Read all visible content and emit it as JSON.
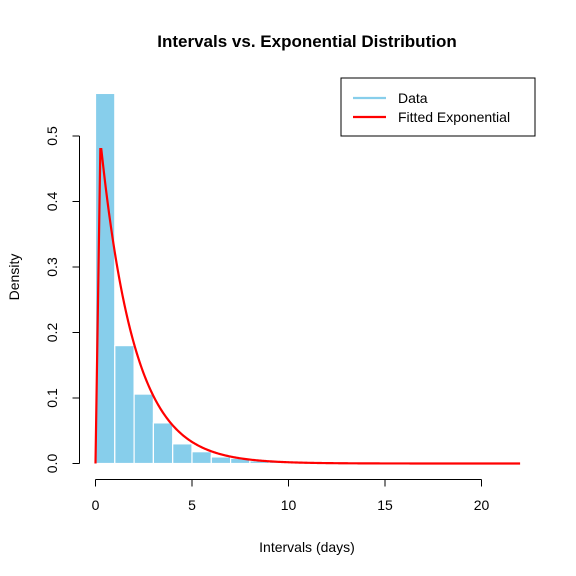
{
  "chart_data": {
    "type": "bar",
    "title": "Intervals vs. Exponential Distribution",
    "xlabel": "Intervals (days)",
    "ylabel": "Density",
    "xlim": [
      0,
      22
    ],
    "ylim": [
      0,
      0.565
    ],
    "x_ticks": [
      0,
      5,
      10,
      15,
      20
    ],
    "x_tick_labels": [
      "0",
      "5",
      "10",
      "15",
      "20"
    ],
    "y_ticks": [
      0.0,
      0.1,
      0.2,
      0.3,
      0.4,
      0.5
    ],
    "y_tick_labels": [
      "0.0",
      "0.1",
      "0.2",
      "0.3",
      "0.4",
      "0.5"
    ],
    "grid": false,
    "legend_position": "top-right",
    "histogram": {
      "name": "Data",
      "color": "#87CEEB",
      "bin_width": 1,
      "bin_starts": [
        0,
        1,
        2,
        3,
        4,
        5,
        6,
        7,
        8,
        9,
        10,
        11,
        12,
        13
      ],
      "density": [
        0.565,
        0.18,
        0.106,
        0.062,
        0.03,
        0.018,
        0.01,
        0.008,
        0.004,
        0.003,
        0.002,
        0.001,
        0.001,
        0.001
      ]
    },
    "fitted_curve": {
      "name": "Fitted Exponential",
      "color": "#FF0000",
      "distribution": "exponential",
      "rate": 0.57,
      "x_range": [
        0,
        22
      ]
    }
  }
}
